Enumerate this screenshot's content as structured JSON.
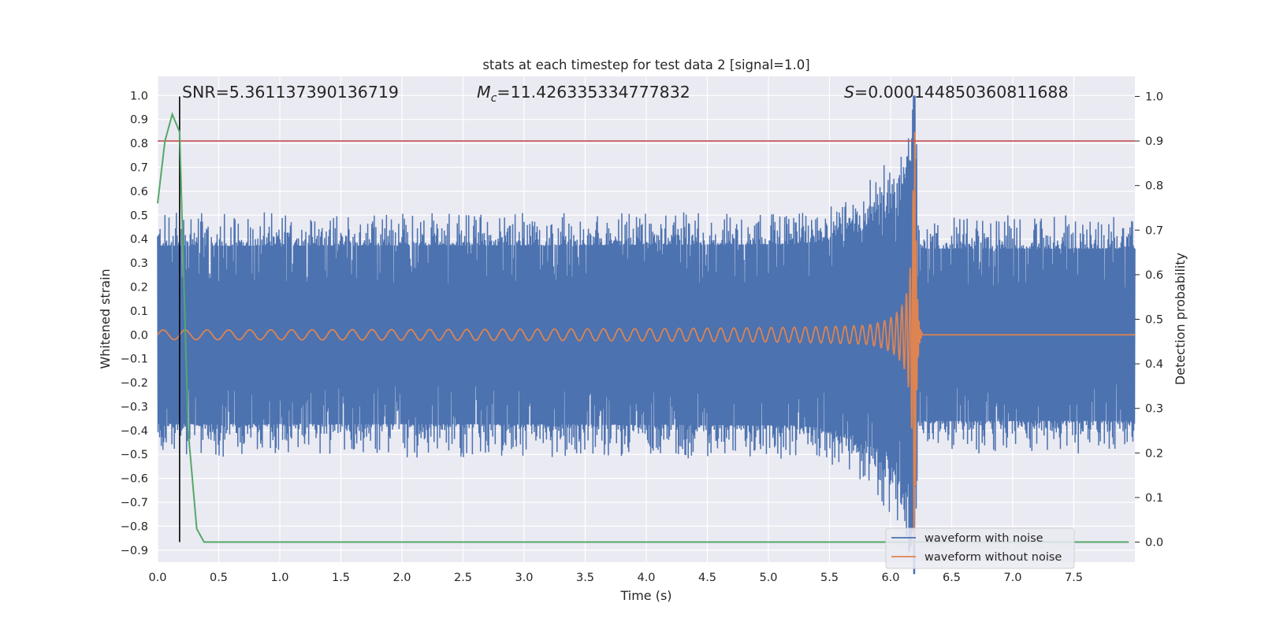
{
  "chart_data": {
    "type": "line",
    "title": "stats at each timestep for test data 2 [signal=1.0]",
    "xlabel": "Time (s)",
    "ylabel": "Whitened strain",
    "ylabel_right": "Detection probability",
    "xlim": [
      0.0,
      8.0
    ],
    "ylim": [
      -0.95,
      1.08
    ],
    "ylim_right": [
      -0.045,
      1.045
    ],
    "x_ticks": [
      "0.0",
      "0.5",
      "1.0",
      "1.5",
      "2.0",
      "2.5",
      "3.0",
      "3.5",
      "4.0",
      "4.5",
      "5.0",
      "5.5",
      "6.0",
      "6.5",
      "7.0",
      "7.5"
    ],
    "y_ticks": [
      "1.0",
      "0.9",
      "0.8",
      "0.7",
      "0.6",
      "0.5",
      "0.4",
      "0.3",
      "0.2",
      "0.1",
      "0.0",
      "−0.1",
      "−0.2",
      "−0.3",
      "−0.4",
      "−0.5",
      "−0.6",
      "−0.7",
      "−0.8",
      "−0.9"
    ],
    "y_right_ticks": [
      "1.0",
      "0.9",
      "0.8",
      "0.7",
      "0.6",
      "0.5",
      "0.4",
      "0.3",
      "0.2",
      "0.1",
      "0.0"
    ],
    "annotations": {
      "snr": "SNR=5.361137390136719",
      "mc_symbol": "M",
      "mc_sub": "c",
      "mc_value": "=11.426335334777832",
      "s_symbol": "S",
      "s_value": "=0.000144850360811688"
    },
    "threshold_probability": 0.9,
    "detection_time": 0.18,
    "merger_time": 6.2,
    "noise_envelope_amplitude": 0.5,
    "detection_probability": {
      "t": [
        0.0,
        0.06,
        0.12,
        0.18,
        0.25,
        0.32,
        0.38,
        7.95
      ],
      "p": [
        0.76,
        0.9,
        0.96,
        0.92,
        0.25,
        0.03,
        0.0,
        0.0
      ]
    },
    "legend_position": "lower right",
    "grid": true,
    "series": [
      {
        "name": "waveform with noise",
        "color": "#4c72b0"
      },
      {
        "name": "waveform without noise",
        "color": "#dd8452"
      },
      {
        "color": "#55a868"
      }
    ],
    "threshold_color": "#c44e52",
    "detection_marker_color": "#000000"
  }
}
